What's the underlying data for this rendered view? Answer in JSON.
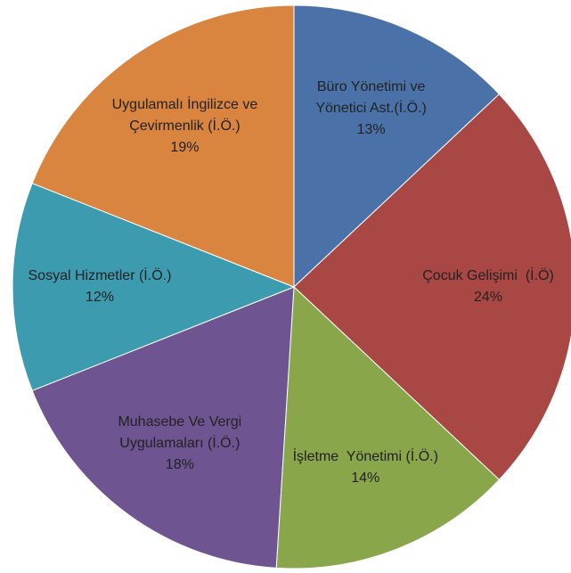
{
  "chart_data": {
    "type": "pie",
    "categories": [
      "Büro Yönetimi ve\nYönetici Ast.(İ.Ö.)",
      "Çocuk Gelişimi  (İ.Ö)",
      "İşletme  Yönetimi (İ.Ö.)",
      "Muhasebe Ve Vergi\nUygulamaları (İ.Ö.)",
      "Sosyal Hizmetler (İ.Ö.)",
      "Uygulamalı İngilizce ve\nÇevirmenlik (İ.Ö.)"
    ],
    "values": [
      13,
      24,
      14,
      18,
      12,
      19
    ],
    "value_labels": [
      "13%",
      "24%",
      "14%",
      "18%",
      "12%",
      "19%"
    ],
    "colors": [
      "#4a72a8",
      "#a84744",
      "#89a64b",
      "#6e5490",
      "#3d9bb0",
      "#d9843f"
    ]
  }
}
